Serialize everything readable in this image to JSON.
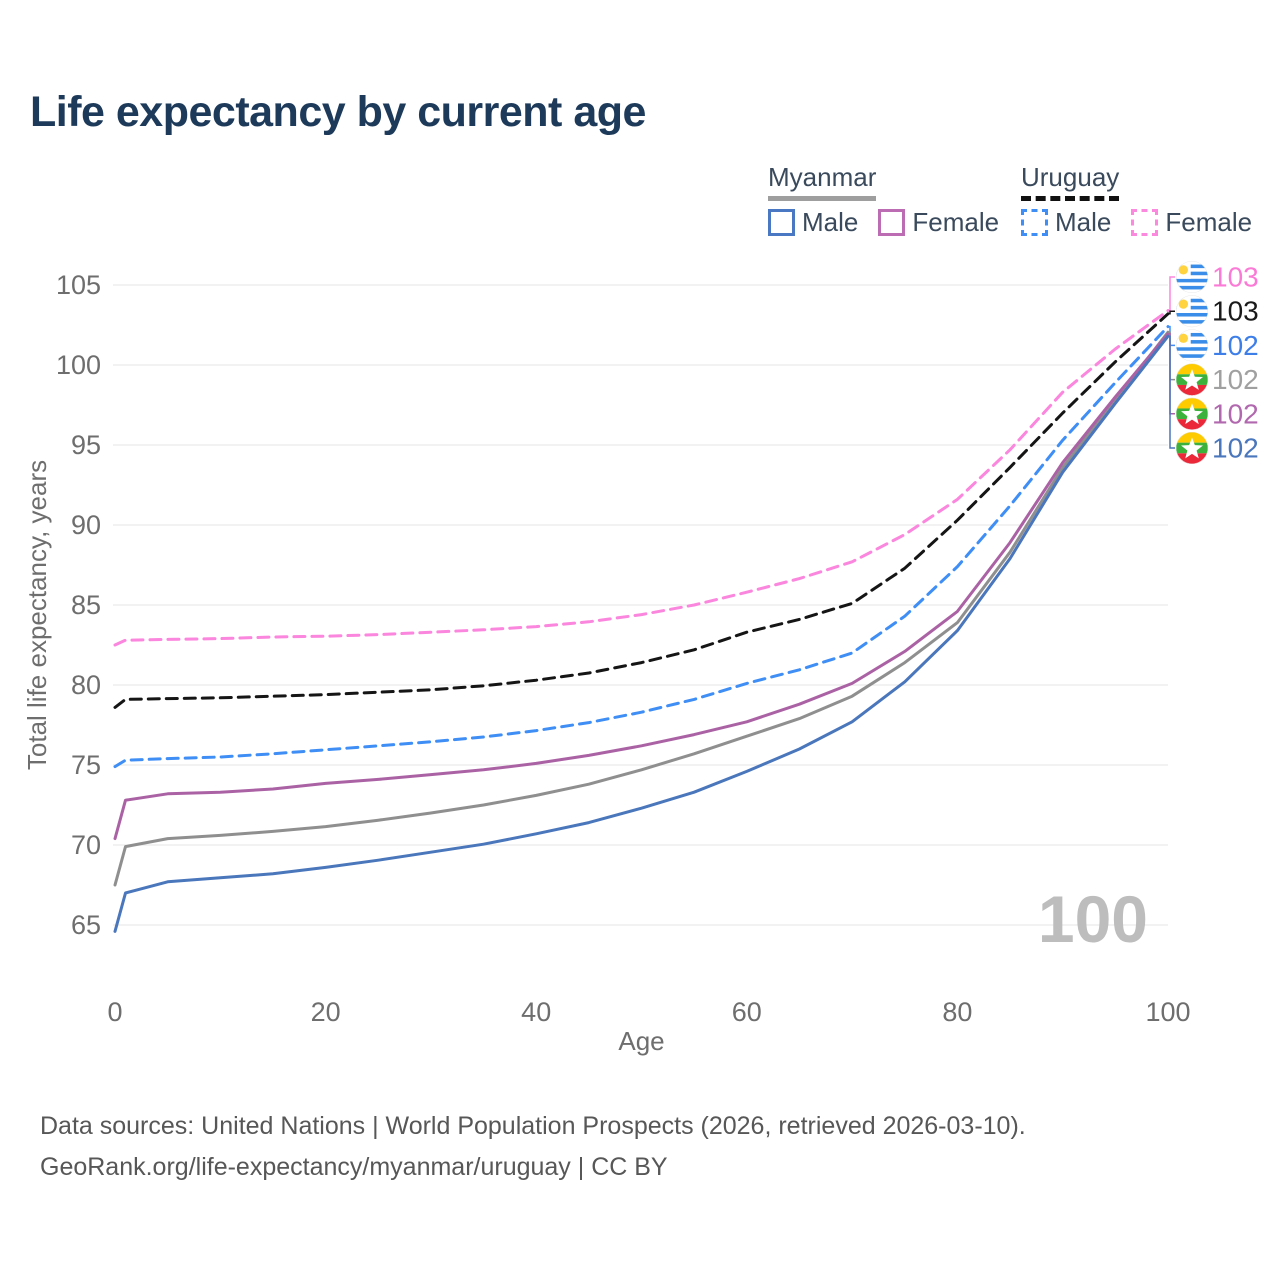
{
  "title": "Life expectancy by current age",
  "legend": {
    "groups": [
      {
        "country": "Myanmar",
        "line_style": "solid",
        "underline_color": "#9e9e9e",
        "items": [
          {
            "label": "Male",
            "color": "#4a78c2",
            "dashed": false
          },
          {
            "label": "Female",
            "color": "#bb6cb2",
            "dashed": false
          }
        ]
      },
      {
        "country": "Uruguay",
        "line_style": "dashed",
        "underline_color": "#111111",
        "items": [
          {
            "label": "Male",
            "color": "#3f8ef5",
            "dashed": true
          },
          {
            "label": "Female",
            "color": "#fb8ade",
            "dashed": true
          }
        ]
      }
    ]
  },
  "chart_data": {
    "type": "line",
    "title": "Life expectancy by current age",
    "xlabel": "Age",
    "ylabel": "Total life expectancy, years",
    "xticks": [
      0,
      20,
      40,
      60,
      80,
      100
    ],
    "yticks": [
      65,
      70,
      75,
      80,
      85,
      90,
      95,
      100,
      105
    ],
    "xlim": [
      0,
      100
    ],
    "ylim": [
      63.5,
      106
    ],
    "grid": true,
    "legend_position": "top-right",
    "watermark": "100",
    "x": [
      0,
      1,
      5,
      10,
      15,
      20,
      25,
      30,
      35,
      40,
      45,
      50,
      55,
      60,
      65,
      70,
      75,
      80,
      85,
      90,
      95,
      100
    ],
    "series": [
      {
        "name": "Uruguay Female",
        "country": "Uruguay",
        "sex": "Female",
        "color": "#fb86dd",
        "label_color": "#fb7ad6",
        "dashed": true,
        "flag": "uruguay",
        "end_label": "103",
        "values": [
          82.5,
          82.8,
          82.85,
          82.9,
          83.0,
          83.05,
          83.15,
          83.3,
          83.45,
          83.65,
          83.95,
          84.4,
          85.0,
          85.8,
          86.65,
          87.7,
          89.4,
          91.6,
          94.7,
          98.3,
          101.0,
          103.4
        ]
      },
      {
        "name": "Uruguay",
        "country": "Uruguay",
        "sex": "Both",
        "color": "#151515",
        "label_color": "#1a1a1a",
        "dashed": true,
        "flag": "uruguay",
        "end_label": "103",
        "values": [
          78.6,
          79.1,
          79.15,
          79.2,
          79.3,
          79.4,
          79.55,
          79.7,
          79.95,
          80.3,
          80.75,
          81.4,
          82.2,
          83.3,
          84.1,
          85.1,
          87.3,
          90.3,
          93.6,
          97.0,
          100.2,
          103.2
        ]
      },
      {
        "name": "Uruguay Male",
        "country": "Uruguay",
        "sex": "Male",
        "color": "#3f8ef5",
        "label_color": "#3d7ee8",
        "dashed": true,
        "flag": "uruguay",
        "end_label": "102",
        "values": [
          74.9,
          75.3,
          75.4,
          75.5,
          75.7,
          75.95,
          76.2,
          76.45,
          76.75,
          77.15,
          77.65,
          78.3,
          79.1,
          80.1,
          80.95,
          82.0,
          84.3,
          87.4,
          91.2,
          95.3,
          98.9,
          102.4
        ]
      },
      {
        "name": "Myanmar",
        "country": "Myanmar",
        "sex": "Both",
        "color": "#8f8f8f",
        "label_color": "#a0a0a0",
        "dashed": false,
        "flag": "myanmar",
        "end_label": "102",
        "values": [
          67.5,
          69.9,
          70.4,
          70.6,
          70.85,
          71.15,
          71.55,
          72.0,
          72.5,
          73.1,
          73.8,
          74.7,
          75.7,
          76.8,
          77.9,
          79.3,
          81.4,
          83.9,
          88.3,
          93.6,
          97.8,
          102.05
        ]
      },
      {
        "name": "Myanmar Female",
        "country": "Myanmar",
        "sex": "Female",
        "color": "#ab62a5",
        "label_color": "#b168ae",
        "dashed": false,
        "flag": "myanmar",
        "end_label": "102",
        "values": [
          70.4,
          72.8,
          73.2,
          73.3,
          73.5,
          73.85,
          74.1,
          74.4,
          74.7,
          75.1,
          75.6,
          76.2,
          76.9,
          77.7,
          78.8,
          80.1,
          82.1,
          84.6,
          88.9,
          93.9,
          98.0,
          101.95
        ]
      },
      {
        "name": "Myanmar Male",
        "country": "Myanmar",
        "sex": "Male",
        "color": "#4a76bc",
        "label_color": "#4a76bc",
        "dashed": false,
        "flag": "myanmar",
        "end_label": "102",
        "values": [
          64.6,
          67.0,
          67.7,
          67.95,
          68.2,
          68.6,
          69.05,
          69.55,
          70.05,
          70.7,
          71.4,
          72.3,
          73.3,
          74.6,
          76.0,
          77.7,
          80.2,
          83.4,
          87.9,
          93.3,
          97.6,
          101.8
        ]
      }
    ],
    "colors": {
      "grid": "#e9e9e9",
      "tick_label": "#6e6e6e",
      "axis_title": "#6e6e6e",
      "watermark": "#bdbdbd",
      "flag_uruguay_blue": "#3a8de8",
      "flag_uruguay_sun": "#ffd23f",
      "flag_myanmar_yellow": "#fecb00",
      "flag_myanmar_green": "#3cb23c",
      "flag_myanmar_red": "#ea2839"
    }
  },
  "footer": {
    "line1": "Data sources: United Nations | World Population Prospects (2026, retrieved 2026-03-10).",
    "line2": "GeoRank.org/life-expectancy/myanmar/uruguay | CC BY"
  }
}
